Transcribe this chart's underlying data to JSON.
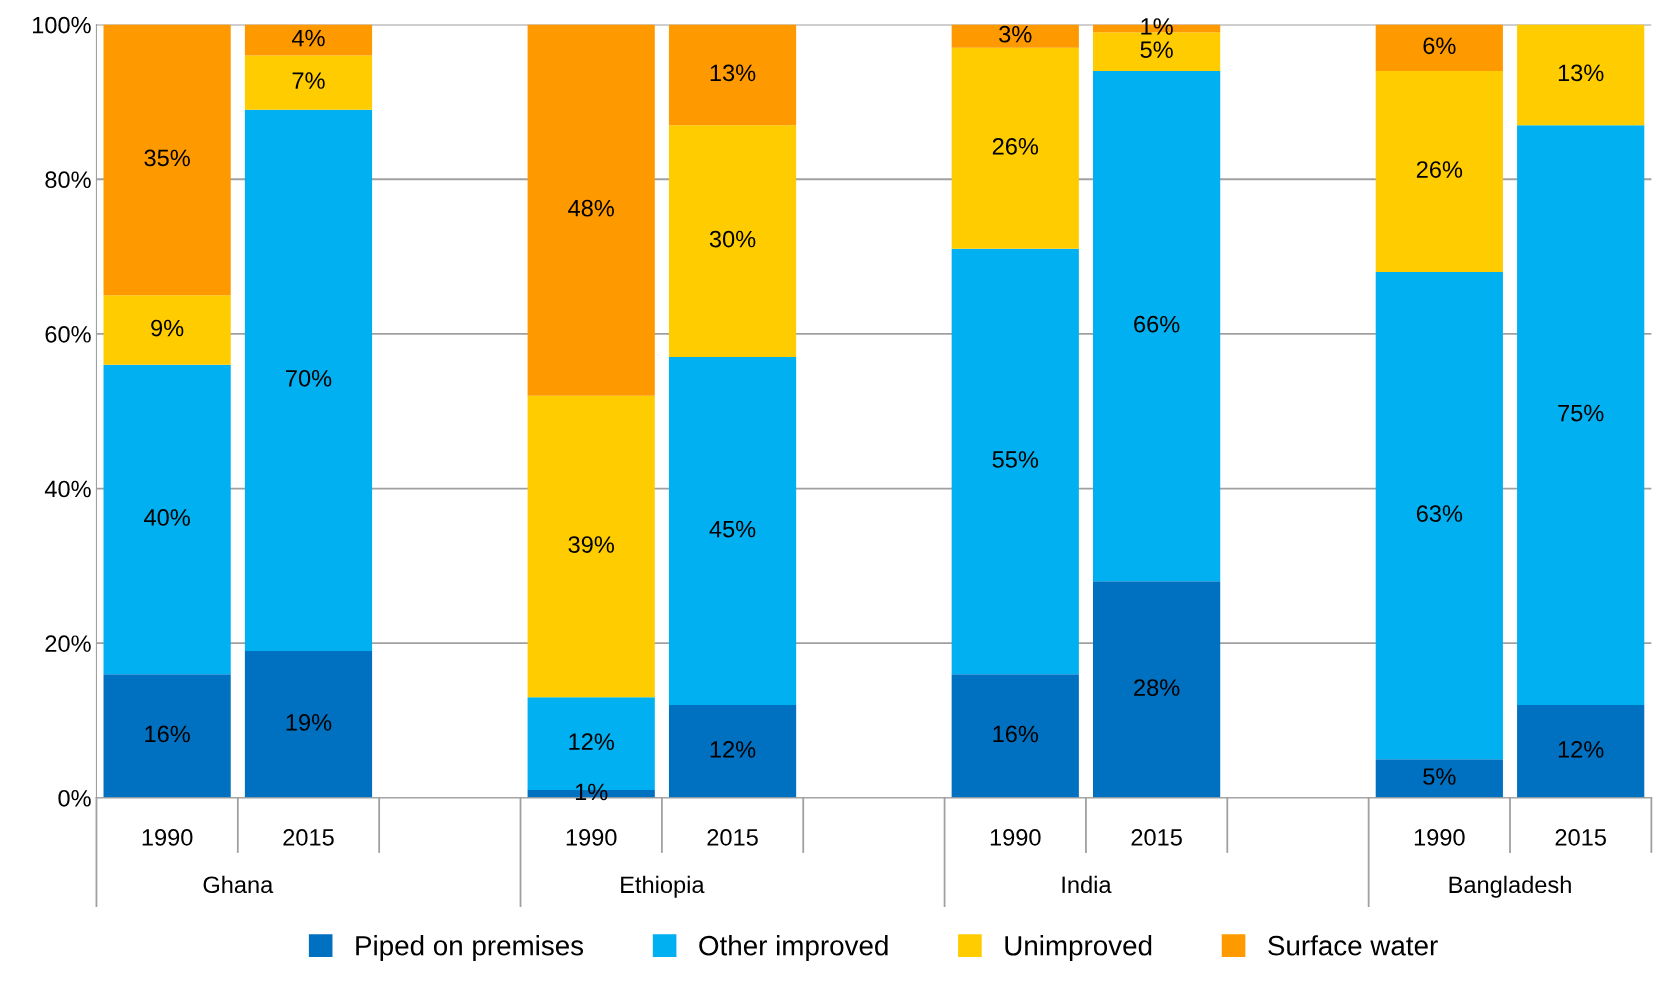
{
  "chart_data": {
    "type": "bar",
    "stacked": true,
    "categories": [
      "1990",
      "2015",
      null,
      "1990",
      "2015",
      null,
      "1990",
      "2015",
      null,
      "1990",
      "2015"
    ],
    "series": [
      {
        "name": "Piped on premises",
        "color": "#0070c0",
        "values": [
          16,
          19,
          null,
          1,
          12,
          null,
          16,
          28,
          null,
          5,
          12
        ],
        "value_labels": [
          "16%",
          "19%",
          null,
          "1%",
          "12%",
          null,
          "16%",
          "28%",
          null,
          "5%",
          "12%"
        ]
      },
      {
        "name": "Other improved",
        "color": "#00b0f0",
        "values": [
          40,
          70,
          null,
          12,
          45,
          null,
          55,
          66,
          null,
          63,
          75
        ],
        "value_labels": [
          "40%",
          "70%",
          null,
          "12%",
          "45%",
          null,
          "55%",
          "66%",
          null,
          "63%",
          "75%"
        ]
      },
      {
        "name": "Unimproved",
        "color": "#ffcc00",
        "values": [
          9,
          7,
          null,
          39,
          30,
          null,
          26,
          5,
          null,
          26,
          13
        ],
        "value_labels": [
          "9%",
          "7%",
          null,
          "39%",
          "30%",
          null,
          "26%",
          "5%",
          null,
          "26%",
          "13%"
        ]
      },
      {
        "name": "Surface water",
        "color": "#ff9900",
        "values": [
          35,
          4,
          null,
          48,
          13,
          null,
          3,
          1,
          null,
          6,
          null
        ],
        "value_labels": [
          "35%",
          "4%",
          null,
          "48%",
          "13%",
          null,
          "3%",
          "1%",
          null,
          "6%",
          null
        ]
      }
    ],
    "annotations": [
      "Ghana",
      "Ethiopia",
      "India",
      "Bangladesh"
    ],
    "ylim": [
      0,
      100
    ],
    "yticks": [
      {
        "value": 0,
        "label": "0%"
      },
      {
        "value": 20,
        "label": "20%"
      },
      {
        "value": 40,
        "label": "40%"
      },
      {
        "value": 60,
        "label": "60%"
      },
      {
        "value": 80,
        "label": "80%"
      },
      {
        "value": 100,
        "label": "100%"
      }
    ],
    "grid": "y",
    "legend": "bottom"
  }
}
